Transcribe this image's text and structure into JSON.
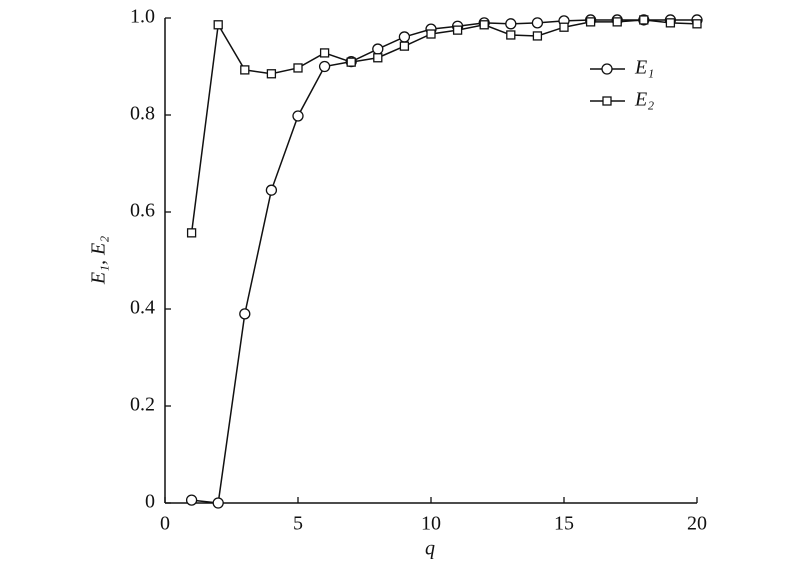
{
  "chart_data": {
    "type": "line",
    "xlabel": "q",
    "ylabel": "E₁, E₂",
    "x": [
      1,
      2,
      3,
      4,
      5,
      6,
      7,
      8,
      9,
      10,
      11,
      12,
      13,
      14,
      15,
      16,
      17,
      18,
      19,
      20
    ],
    "series": [
      {
        "name": "E₁",
        "color": "#111111",
        "marker": "circle",
        "values": [
          0.006,
          0,
          0.39,
          0.645,
          0.798,
          0.9,
          0.91,
          0.936,
          0.961,
          0.977,
          0.983,
          0.99,
          0.988,
          0.99,
          0.994,
          0.996,
          0.996,
          0.996,
          0.996,
          0.996
        ]
      },
      {
        "name": "E₂",
        "color": "#111111",
        "marker": "square",
        "values": [
          0.557,
          0.986,
          0.893,
          0.885,
          0.897,
          0.928,
          0.909,
          0.918,
          0.942,
          0.967,
          0.975,
          0.986,
          0.965,
          0.963,
          0.981,
          0.992,
          0.992,
          0.996,
          0.99,
          0.988
        ]
      }
    ],
    "xlim": [
      0,
      20
    ],
    "xticks": [
      0,
      5,
      10,
      15,
      20
    ],
    "ylim": [
      0,
      1
    ],
    "yticks": [
      0,
      0.2,
      0.4,
      0.6,
      0.8,
      {
        "value": 1,
        "label": "1.0"
      }
    ],
    "legend": "upper right"
  }
}
